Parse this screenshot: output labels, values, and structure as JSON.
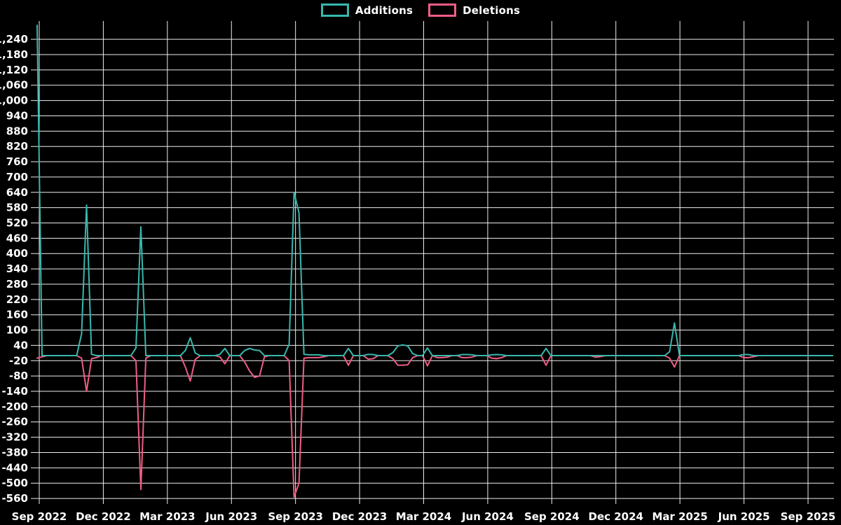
{
  "legend": {
    "items": [
      {
        "label": "Additions",
        "color": "#38b8ae"
      },
      {
        "label": "Deletions",
        "color": "#ee5d85"
      }
    ]
  },
  "colors": {
    "background": "#000000",
    "grid": "#ededed",
    "tick_text": "#ffffff",
    "additions": "#38b8ae",
    "deletions": "#ee5d85"
  },
  "chart_data": {
    "type": "line",
    "title": "",
    "xlabel": "",
    "ylabel": "",
    "legend_position": "top",
    "grid": true,
    "y_axis": {
      "min": -560,
      "max": 1240,
      "step": 60
    },
    "x_tick_labels": [
      "Sep 2022",
      "Dec 2022",
      "Mar 2023",
      "Jun 2023",
      "Sep 2023",
      "Dec 2023",
      "Mar 2024",
      "Jun 2024",
      "Sep 2024",
      "Dec 2024",
      "Mar 2025",
      "Jun 2025",
      "Sep 2025"
    ],
    "weeks_total": 162,
    "week0_label": "Sep 2022",
    "series": [
      {
        "name": "Additions",
        "color": "#38b8ae",
        "default_value": 0,
        "points": [
          [
            0,
            1295
          ],
          [
            9,
            85
          ],
          [
            10,
            590
          ],
          [
            11,
            5
          ],
          [
            20,
            30
          ],
          [
            21,
            505
          ],
          [
            30,
            20
          ],
          [
            31,
            70
          ],
          [
            32,
            10
          ],
          [
            37,
            5
          ],
          [
            38,
            28
          ],
          [
            42,
            20
          ],
          [
            43,
            28
          ],
          [
            44,
            22
          ],
          [
            45,
            20
          ],
          [
            51,
            45
          ],
          [
            52,
            640
          ],
          [
            53,
            560
          ],
          [
            54,
            5
          ],
          [
            55,
            3
          ],
          [
            56,
            3
          ],
          [
            57,
            3
          ],
          [
            63,
            28
          ],
          [
            67,
            5
          ],
          [
            68,
            4
          ],
          [
            72,
            12
          ],
          [
            73,
            38
          ],
          [
            74,
            42
          ],
          [
            75,
            38
          ],
          [
            76,
            8
          ],
          [
            79,
            30
          ],
          [
            86,
            4
          ],
          [
            87,
            4
          ],
          [
            88,
            3
          ],
          [
            92,
            3
          ],
          [
            93,
            4
          ],
          [
            94,
            3
          ],
          [
            103,
            28
          ],
          [
            128,
            15
          ],
          [
            129,
            128
          ],
          [
            143,
            4
          ],
          [
            144,
            4
          ]
        ]
      },
      {
        "name": "Deletions",
        "color": "#ee5d85",
        "default_value": 0,
        "points": [
          [
            0,
            -10
          ],
          [
            1,
            -5
          ],
          [
            9,
            -10
          ],
          [
            10,
            -140
          ],
          [
            11,
            -12
          ],
          [
            12,
            -8
          ],
          [
            20,
            -20
          ],
          [
            21,
            -525
          ],
          [
            22,
            -10
          ],
          [
            30,
            -45
          ],
          [
            31,
            -100
          ],
          [
            32,
            -15
          ],
          [
            37,
            -5
          ],
          [
            38,
            -32
          ],
          [
            42,
            -25
          ],
          [
            43,
            -60
          ],
          [
            44,
            -85
          ],
          [
            45,
            -80
          ],
          [
            46,
            -5
          ],
          [
            51,
            -20
          ],
          [
            52,
            -555
          ],
          [
            53,
            -500
          ],
          [
            54,
            -10
          ],
          [
            55,
            -8
          ],
          [
            56,
            -8
          ],
          [
            57,
            -8
          ],
          [
            58,
            -5
          ],
          [
            63,
            -38
          ],
          [
            67,
            -14
          ],
          [
            68,
            -12
          ],
          [
            72,
            -12
          ],
          [
            73,
            -38
          ],
          [
            74,
            -38
          ],
          [
            75,
            -36
          ],
          [
            76,
            -8
          ],
          [
            79,
            -40
          ],
          [
            81,
            -8
          ],
          [
            82,
            -8
          ],
          [
            83,
            -6
          ],
          [
            86,
            -8
          ],
          [
            87,
            -8
          ],
          [
            88,
            -6
          ],
          [
            92,
            -10
          ],
          [
            93,
            -12
          ],
          [
            94,
            -8
          ],
          [
            103,
            -38
          ],
          [
            113,
            -6
          ],
          [
            114,
            -4
          ],
          [
            128,
            -10
          ],
          [
            129,
            -45
          ],
          [
            143,
            -8
          ],
          [
            144,
            -8
          ],
          [
            145,
            -4
          ]
        ]
      }
    ]
  }
}
